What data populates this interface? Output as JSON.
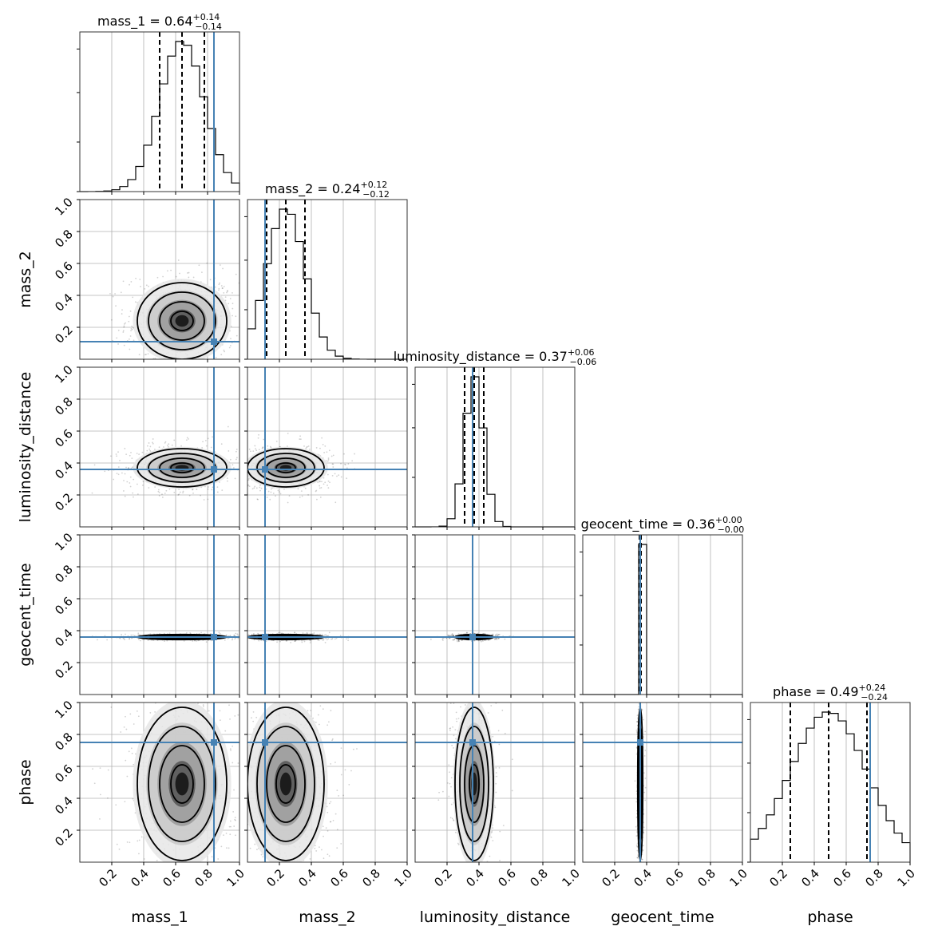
{
  "chart_data": {
    "type": "corner",
    "parameters": [
      "mass_1",
      "mass_2",
      "luminosity_distance",
      "geocent_time",
      "phase"
    ],
    "axis_range": [
      0,
      1
    ],
    "ticks": [
      "0.2",
      "0.4",
      "0.6",
      "0.8",
      "1.0"
    ],
    "tick_values": [
      0.2,
      0.4,
      0.6,
      0.8,
      1.0
    ],
    "grid": true,
    "truth_color": "#4682b4",
    "truths": {
      "mass_1": 0.84,
      "mass_2": 0.11,
      "luminosity_distance": 0.36,
      "geocent_time": 0.36,
      "phase": 0.75
    },
    "titles": {
      "mass_1": {
        "name": "mass_1",
        "median": "0.64",
        "plus": "+0.14",
        "minus": "−0.14"
      },
      "mass_2": {
        "name": "mass_2",
        "median": "0.24",
        "plus": "+0.12",
        "minus": "−0.12"
      },
      "luminosity_distance": {
        "name": "luminosity_distance",
        "median": "0.37",
        "plus": "+0.06",
        "minus": "−0.06"
      },
      "geocent_time": {
        "name": "geocent_time",
        "median": "0.36",
        "plus": "+0.00",
        "minus": "−0.00"
      },
      "phase": {
        "name": "phase",
        "median": "0.49",
        "plus": "+0.24",
        "minus": "−0.24"
      }
    },
    "quantiles": {
      "mass_1": [
        0.5,
        0.64,
        0.78
      ],
      "mass_2": [
        0.12,
        0.24,
        0.36
      ],
      "luminosity_distance": [
        0.31,
        0.37,
        0.43
      ],
      "geocent_time": [
        0.355,
        0.36,
        0.365
      ],
      "phase": [
        0.25,
        0.49,
        0.73
      ]
    },
    "posterior": {
      "mass_1": {
        "mean": 0.64,
        "sd": 0.14
      },
      "mass_2": {
        "mean": 0.24,
        "sd": 0.12
      },
      "luminosity_distance": {
        "mean": 0.37,
        "sd": 0.06
      },
      "geocent_time": {
        "mean": 0.36,
        "sd": 0.008
      },
      "phase": {
        "mean": 0.49,
        "sd": 0.24
      }
    },
    "histogram_bins": 20
  }
}
